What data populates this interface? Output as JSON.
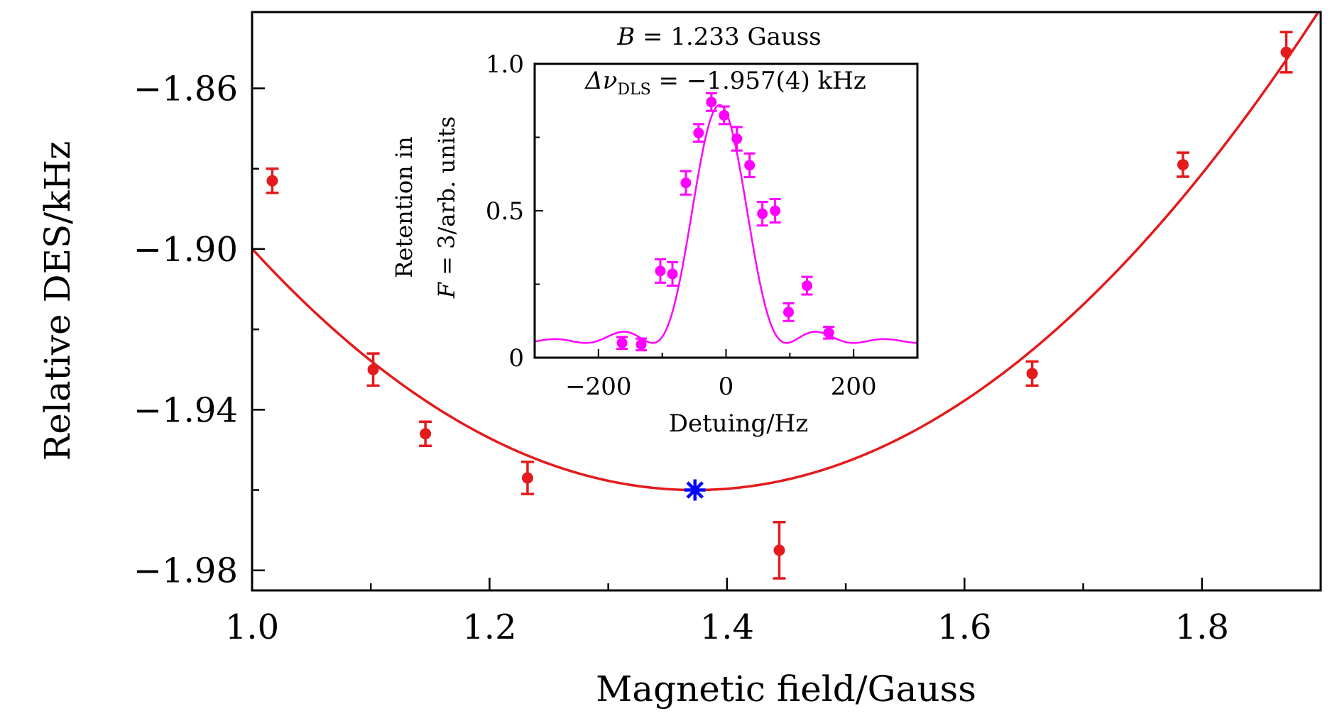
{
  "chart_data": [
    {
      "type": "scatter",
      "role": "main",
      "xlabel": "Magnetic field/Gauss",
      "ylabel": "Relative DES/kHz",
      "xlim": [
        1.0,
        1.9
      ],
      "ylim": [
        -1.985,
        -1.841
      ],
      "xticks": [
        1.0,
        1.2,
        1.4,
        1.6,
        1.8
      ],
      "xtick_labels": [
        "1.0",
        "1.2",
        "1.4",
        "1.6",
        "1.8"
      ],
      "yticks": [
        -1.86,
        -1.9,
        -1.94,
        -1.98
      ],
      "ytick_labels": [
        "−1.86",
        "−1.90",
        "−1.94",
        "−1.98"
      ],
      "grid": false,
      "points": {
        "color": "#e41a1c",
        "x": [
          1.017,
          1.102,
          1.146,
          1.232,
          1.444,
          1.657,
          1.784,
          1.871
        ],
        "y": [
          -1.883,
          -1.93,
          -1.946,
          -1.957,
          -1.975,
          -1.931,
          -1.879,
          -1.851
        ],
        "err": [
          0.003,
          0.004,
          0.003,
          0.004,
          0.007,
          0.003,
          0.003,
          0.005
        ]
      },
      "fit": {
        "color": "#e41a1c",
        "type": "parabola",
        "vertex_x": 1.373,
        "vertex_y": -1.96,
        "curvature": 0.4318
      },
      "marker": {
        "x": 1.373,
        "y": -1.96,
        "color": "#0000ff",
        "symbol": "asterisk"
      }
    },
    {
      "type": "scatter",
      "role": "inset",
      "title_line1_pre": "B",
      "title_line1_post": " = 1.233 Gauss",
      "title_line2_pre": "Δν",
      "title_line2_sub": "DLS",
      "title_line2_post": " = −1.957(4) kHz",
      "xlabel": "Detuing/Hz",
      "ylabel_line1": "Retention in",
      "ylabel_line2_pre": "F",
      "ylabel_line2_post": " = 3/arb. units",
      "xlim": [
        -300,
        300
      ],
      "ylim": [
        0,
        1.0
      ],
      "xticks": [
        -200,
        0,
        200
      ],
      "xtick_labels": [
        "−200",
        "0",
        "200"
      ],
      "yticks": [
        0,
        0.5,
        1.0
      ],
      "ytick_labels": [
        "0",
        "0.5",
        "1.0"
      ],
      "grid": false,
      "points": {
        "color": "#ff00ff",
        "x": [
          -163,
          -133,
          -103,
          -84,
          -63,
          -43,
          -23,
          -3,
          17,
          37,
          57,
          77,
          98,
          127,
          161
        ],
        "y": [
          0.05,
          0.045,
          0.295,
          0.285,
          0.595,
          0.765,
          0.87,
          0.825,
          0.745,
          0.655,
          0.49,
          0.5,
          0.155,
          0.245,
          0.085
        ],
        "err": [
          0.02,
          0.02,
          0.04,
          0.04,
          0.04,
          0.03,
          0.03,
          0.03,
          0.04,
          0.04,
          0.04,
          0.04,
          0.03,
          0.03,
          0.02
        ]
      },
      "fit": {
        "color": "#ff00ff",
        "type": "sinc-squared",
        "center": -10,
        "peak": 0.81,
        "offset": 0.05,
        "half_width": 105
      }
    }
  ]
}
